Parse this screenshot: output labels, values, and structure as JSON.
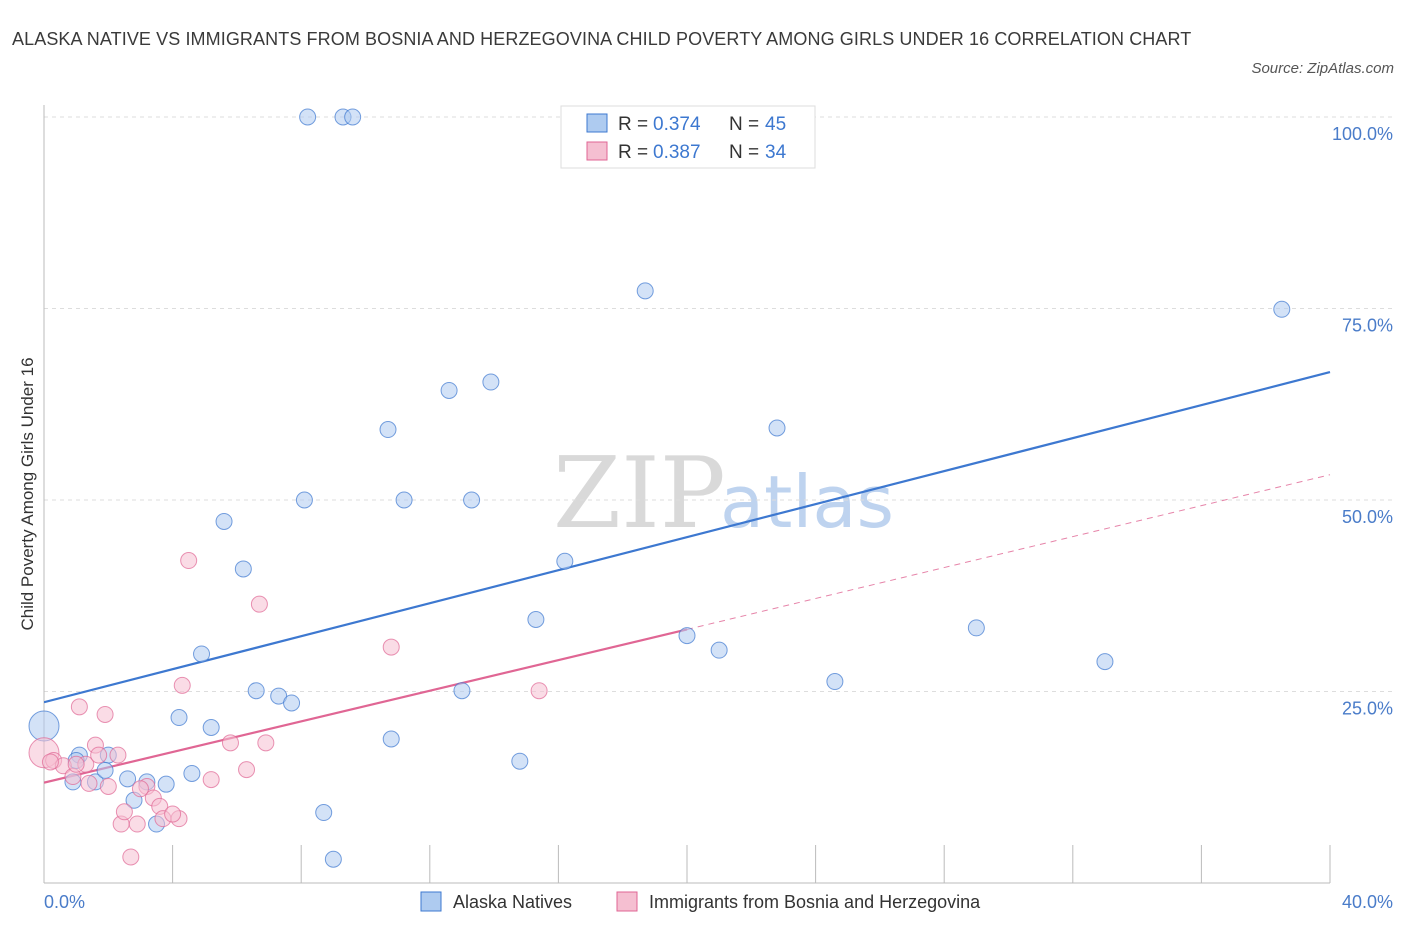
{
  "title": "ALASKA NATIVE VS IMMIGRANTS FROM BOSNIA AND HERZEGOVINA CHILD POVERTY AMONG GIRLS UNDER 16 CORRELATION CHART",
  "source": "Source: ZipAtlas.com",
  "watermark": {
    "zip": "ZIP",
    "atlas": "atlas"
  },
  "chart_data": {
    "type": "scatter",
    "ylabel": "Child Poverty Among Girls Under 16",
    "xlim": [
      0,
      40
    ],
    "ylim": [
      0,
      100
    ],
    "x_tick_labels": [
      "0.0%",
      "40.0%"
    ],
    "y_tick_values": [
      25,
      50,
      75,
      100
    ],
    "y_tick_labels": [
      "25.0%",
      "50.0%",
      "75.0%",
      "100.0%"
    ],
    "colors": {
      "blue": "#3d78d0",
      "pink": "#e06694",
      "blue_fill": "#aecbf0",
      "pink_fill": "#f5bfd1"
    },
    "legend_box": {
      "rows": [
        {
          "r_label": "R = ",
          "r_value": "0.374",
          "n_label": "N = ",
          "n_value": "45"
        },
        {
          "r_label": "R = ",
          "r_value": "0.387",
          "n_label": "N = ",
          "n_value": "34"
        }
      ]
    },
    "series": [
      {
        "name": "Alaska Natives",
        "color": "#3d78d0",
        "trend": {
          "x0": 0,
          "y0": 23.6,
          "x1": 40,
          "y1": 66.7,
          "dashed_to": null
        },
        "points": [
          [
            0.0,
            20.5
          ],
          [
            0.9,
            13.2
          ],
          [
            1.1,
            16.7
          ],
          [
            1.6,
            13.2
          ],
          [
            2.0,
            16.7
          ],
          [
            1.9,
            14.7
          ],
          [
            2.6,
            13.6
          ],
          [
            2.8,
            10.8
          ],
          [
            3.2,
            13.2
          ],
          [
            3.5,
            7.7
          ],
          [
            3.8,
            12.9
          ],
          [
            4.2,
            21.6
          ],
          [
            4.6,
            14.3
          ],
          [
            4.9,
            29.9
          ],
          [
            5.2,
            20.3
          ],
          [
            5.6,
            47.2
          ],
          [
            6.2,
            41.0
          ],
          [
            6.6,
            25.1
          ],
          [
            7.3,
            24.4
          ],
          [
            7.7,
            23.5
          ],
          [
            8.1,
            50.0
          ],
          [
            8.2,
            100.0
          ],
          [
            8.7,
            9.2
          ],
          [
            9.0,
            3.1
          ],
          [
            9.3,
            100.0
          ],
          [
            9.6,
            100.0
          ],
          [
            10.7,
            59.2
          ],
          [
            10.8,
            18.8
          ],
          [
            11.2,
            50.0
          ],
          [
            12.6,
            64.3
          ],
          [
            13.0,
            25.1
          ],
          [
            13.3,
            50.0
          ],
          [
            13.9,
            65.4
          ],
          [
            14.8,
            15.9
          ],
          [
            15.3,
            34.4
          ],
          [
            16.2,
            42.0
          ],
          [
            18.7,
            77.3
          ],
          [
            20.0,
            32.3
          ],
          [
            21.0,
            30.4
          ],
          [
            22.8,
            59.4
          ],
          [
            24.6,
            26.3
          ],
          [
            29.0,
            33.3
          ],
          [
            33.0,
            28.9
          ],
          [
            38.5,
            74.9
          ],
          [
            1.0,
            16.0
          ]
        ]
      },
      {
        "name": "Immigrants from Bosnia and Herzegovina",
        "color": "#e06694",
        "trend": {
          "x0": 0,
          "y0": 13.1,
          "x1": 20,
          "y1": 33.1,
          "dashed_to": {
            "x": 40,
            "y": 53.3
          }
        },
        "points": [
          [
            0.0,
            17.0
          ],
          [
            0.3,
            16.0
          ],
          [
            0.6,
            15.3
          ],
          [
            0.9,
            13.9
          ],
          [
            1.1,
            23.0
          ],
          [
            1.3,
            15.5
          ],
          [
            1.4,
            13.0
          ],
          [
            1.6,
            18.0
          ],
          [
            1.7,
            16.7
          ],
          [
            1.9,
            22.0
          ],
          [
            2.0,
            12.6
          ],
          [
            2.3,
            16.7
          ],
          [
            2.4,
            7.7
          ],
          [
            2.5,
            9.3
          ],
          [
            2.7,
            3.4
          ],
          [
            2.9,
            7.7
          ],
          [
            3.2,
            12.6
          ],
          [
            3.4,
            11.1
          ],
          [
            3.6,
            10.0
          ],
          [
            3.7,
            8.4
          ],
          [
            4.2,
            8.4
          ],
          [
            4.3,
            25.8
          ],
          [
            4.5,
            42.1
          ],
          [
            5.2,
            13.5
          ],
          [
            5.8,
            18.3
          ],
          [
            6.3,
            14.8
          ],
          [
            6.7,
            36.4
          ],
          [
            6.9,
            18.3
          ],
          [
            10.8,
            30.8
          ],
          [
            15.4,
            25.1
          ],
          [
            0.2,
            15.8
          ],
          [
            1.0,
            15.5
          ],
          [
            3.0,
            12.3
          ],
          [
            4.0,
            9.0
          ]
        ]
      }
    ]
  }
}
